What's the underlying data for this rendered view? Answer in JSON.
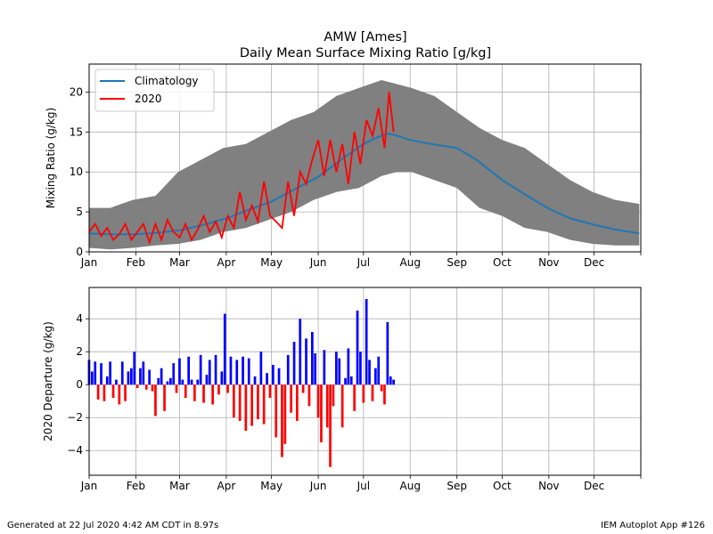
{
  "title_line1": "AMW [Ames]",
  "title_line2": "Daily Mean Surface Mixing Ratio [g/kg]",
  "footer_left": "Generated at 22 Jul 2020 4:42 AM CDT in 8.97s",
  "footer_right": "IEM Autoplot App #126",
  "colors": {
    "climatology": "#1f77b4",
    "year": "#ff0000",
    "range_fill": "#808080",
    "positive_bar": "#0000ff",
    "negative_bar": "#ff0000",
    "grid": "#b0b0b0"
  },
  "chart_data": [
    {
      "type": "line",
      "ylabel": "Mixing Ratio (g/kg)",
      "ylim": [
        0,
        23.5
      ],
      "xlim": [
        1,
        367
      ],
      "yticks": [
        0,
        5,
        10,
        15,
        20
      ],
      "month_ticks": [
        1,
        32,
        61,
        92,
        122,
        153,
        183,
        214,
        245,
        275,
        306,
        336
      ],
      "month_labels": [
        "Jan",
        "Feb",
        "Mar",
        "Apr",
        "May",
        "Jun",
        "Jul",
        "Aug",
        "Sep",
        "Oct",
        "Nov",
        "Dec"
      ],
      "grid": true,
      "legend_position": "top-left",
      "legend": [
        "Climatology",
        "2020"
      ],
      "range_band": {
        "x": [
          1,
          15,
          30,
          45,
          60,
          75,
          90,
          105,
          120,
          135,
          150,
          165,
          180,
          195,
          205,
          215,
          230,
          245,
          260,
          275,
          290,
          305,
          320,
          335,
          350,
          366
        ],
        "upper": [
          5.5,
          5.5,
          6.5,
          7,
          10,
          11.5,
          13,
          13.5,
          15,
          16.5,
          17.5,
          19.5,
          20.5,
          21.5,
          21,
          20.5,
          19.5,
          17.5,
          15.5,
          14,
          13,
          11,
          9,
          7.5,
          6.5,
          6
        ],
        "lower": [
          0.5,
          0.3,
          0.5,
          0.8,
          1,
          1.5,
          2.5,
          3,
          4,
          5,
          6.5,
          7.5,
          8,
          9.5,
          10,
          10,
          9,
          8,
          5.5,
          4.5,
          3,
          2.5,
          1.5,
          1,
          0.8,
          0.8
        ]
      },
      "climatology": {
        "x": [
          1,
          15,
          32,
          46,
          61,
          75,
          92,
          106,
          122,
          137,
          153,
          168,
          183,
          192,
          199,
          206,
          214,
          228,
          245,
          258,
          275,
          290,
          306,
          320,
          336,
          350,
          366
        ],
        "y": [
          2.3,
          2.2,
          2.2,
          2.4,
          2.7,
          3.3,
          4.2,
          5.2,
          6.3,
          7.8,
          9.4,
          11.5,
          13.5,
          14.3,
          14.8,
          14.5,
          14.0,
          13.5,
          13.0,
          11.5,
          9.0,
          7.2,
          5.4,
          4.2,
          3.4,
          2.8,
          2.3
        ],
        "name": "Climatology"
      },
      "year_2020": {
        "x": [
          1,
          5,
          9,
          13,
          17,
          21,
          25,
          29,
          33,
          37,
          41,
          45,
          49,
          53,
          57,
          61,
          65,
          69,
          73,
          77,
          81,
          85,
          89,
          93,
          97,
          101,
          105,
          109,
          113,
          117,
          121,
          125,
          129,
          133,
          137,
          141,
          145,
          149,
          153,
          157,
          161,
          165,
          169,
          173,
          177,
          181,
          185,
          189,
          193,
          197,
          200,
          203
        ],
        "y": [
          2.5,
          3.5,
          2,
          3,
          1.5,
          2.2,
          3.5,
          1.5,
          2.5,
          3.5,
          1.2,
          3.5,
          1.5,
          4,
          2.5,
          1.8,
          3.5,
          1.5,
          2.8,
          4.5,
          2.5,
          3.8,
          1.8,
          4.5,
          3,
          7.5,
          4,
          5.8,
          3.8,
          8.8,
          4.5,
          3.8,
          3,
          8.8,
          4.5,
          10,
          8.5,
          11.5,
          14,
          9.5,
          14,
          10,
          13.5,
          8.5,
          15,
          11,
          16.5,
          14.5,
          18,
          13,
          20,
          15
        ],
        "name": "2020"
      }
    },
    {
      "type": "bar",
      "ylabel": "2020 Departure (g/kg)",
      "ylim": [
        -5.5,
        5.9
      ],
      "xlim": [
        1,
        367
      ],
      "yticks": [
        -4,
        -2,
        0,
        2,
        4
      ],
      "grid": true,
      "days": [
        1,
        3,
        5,
        7,
        9,
        11,
        13,
        15,
        17,
        19,
        21,
        23,
        25,
        27,
        29,
        31,
        33,
        35,
        37,
        39,
        41,
        43,
        45,
        47,
        49,
        51,
        53,
        55,
        57,
        59,
        61,
        63,
        65,
        67,
        69,
        71,
        73,
        75,
        77,
        79,
        81,
        83,
        85,
        87,
        89,
        91,
        93,
        95,
        97,
        99,
        101,
        103,
        105,
        107,
        109,
        111,
        113,
        115,
        117,
        119,
        121,
        123,
        125,
        127,
        129,
        131,
        133,
        135,
        137,
        139,
        141,
        143,
        145,
        147,
        149,
        151,
        153,
        155,
        157,
        159,
        161,
        163,
        165,
        167,
        169,
        171,
        173,
        175,
        177,
        179,
        181,
        183,
        185,
        187,
        189,
        191,
        193,
        195,
        197,
        199,
        201,
        203
      ],
      "values": [
        1.5,
        0.8,
        1.4,
        -0.9,
        1.3,
        -1.0,
        0.5,
        1.4,
        -0.8,
        0.3,
        -1.2,
        1.4,
        -1.0,
        0.8,
        1.0,
        2.0,
        -0.2,
        1.0,
        1.4,
        -0.3,
        0.9,
        -0.4,
        -1.9,
        0.4,
        1.0,
        -1.6,
        0.2,
        0.4,
        1.3,
        -0.5,
        1.6,
        0.3,
        -0.8,
        1.7,
        0.3,
        -1.0,
        0.3,
        1.8,
        -1.1,
        0.6,
        1.5,
        -1.2,
        1.8,
        -0.6,
        0.8,
        4.3,
        -0.5,
        1.7,
        -2.0,
        1.5,
        -2.2,
        1.7,
        -2.8,
        1.6,
        -2.5,
        0.5,
        -2.1,
        2.0,
        -2.4,
        0.7,
        -0.8,
        1.2,
        -3.2,
        1.0,
        -4.4,
        -3.6,
        1.8,
        -1.7,
        2.6,
        -2.2,
        4.0,
        -0.5,
        2.8,
        -1.3,
        3.2,
        1.9,
        -2.0,
        -3.5,
        2.1,
        -2.6,
        -5.0,
        -1.3,
        2.0,
        1.6,
        -2.6,
        0.4,
        2.2,
        0.5,
        -1.6,
        4.5,
        2.0,
        -1.1,
        5.2,
        1.5,
        -1.0,
        1.0,
        1.7,
        -0.4,
        -1.2,
        3.8,
        0.5,
        0.3
      ]
    }
  ]
}
